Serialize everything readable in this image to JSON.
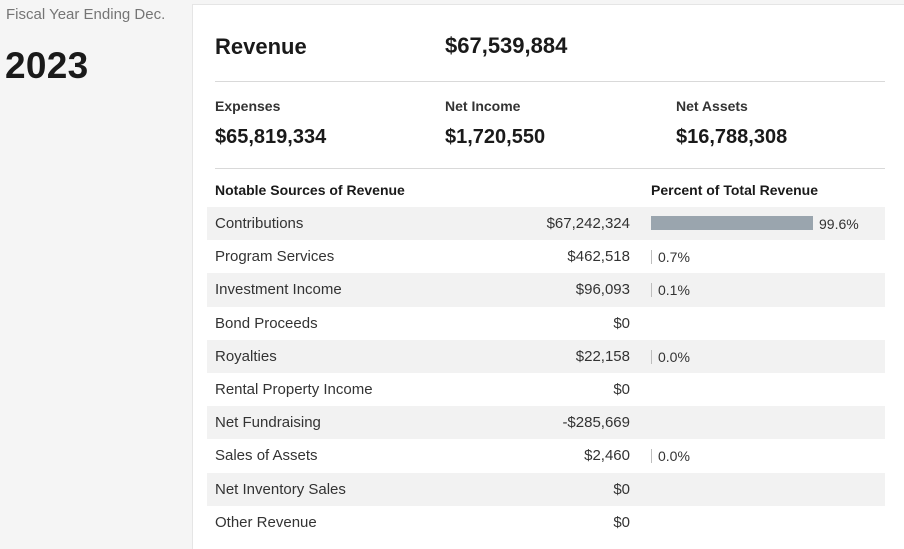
{
  "sidebar": {
    "fiscal_label": "Fiscal Year Ending Dec.",
    "year": "2023"
  },
  "summary": {
    "revenue_label": "Revenue",
    "revenue_value": "$67,539,884",
    "expenses_label": "Expenses",
    "expenses_value": "$65,819,334",
    "net_income_label": "Net Income",
    "net_income_value": "$1,720,550",
    "net_assets_label": "Net Assets",
    "net_assets_value": "$16,788,308"
  },
  "table": {
    "col_sources": "Notable Sources of Revenue",
    "col_percent": "Percent of Total Revenue",
    "bar_color": "#9aa5ae",
    "rows": [
      {
        "label": "Contributions",
        "amount": "$67,242,324",
        "percent": "99.6%",
        "pct_value": 99.6
      },
      {
        "label": "Program Services",
        "amount": "$462,518",
        "percent": "0.7%",
        "pct_value": 0.7
      },
      {
        "label": "Investment Income",
        "amount": "$96,093",
        "percent": "0.1%",
        "pct_value": 0.1
      },
      {
        "label": "Bond Proceeds",
        "amount": "$0",
        "percent": "",
        "pct_value": null
      },
      {
        "label": "Royalties",
        "amount": "$22,158",
        "percent": "0.0%",
        "pct_value": 0.0
      },
      {
        "label": "Rental Property Income",
        "amount": "$0",
        "percent": "",
        "pct_value": null
      },
      {
        "label": "Net Fundraising",
        "amount": "-$285,669",
        "percent": "",
        "pct_value": null
      },
      {
        "label": "Sales of Assets",
        "amount": "$2,460",
        "percent": "0.0%",
        "pct_value": 0.0
      },
      {
        "label": "Net Inventory Sales",
        "amount": "$0",
        "percent": "",
        "pct_value": null
      },
      {
        "label": "Other Revenue",
        "amount": "$0",
        "percent": "",
        "pct_value": null
      }
    ]
  }
}
